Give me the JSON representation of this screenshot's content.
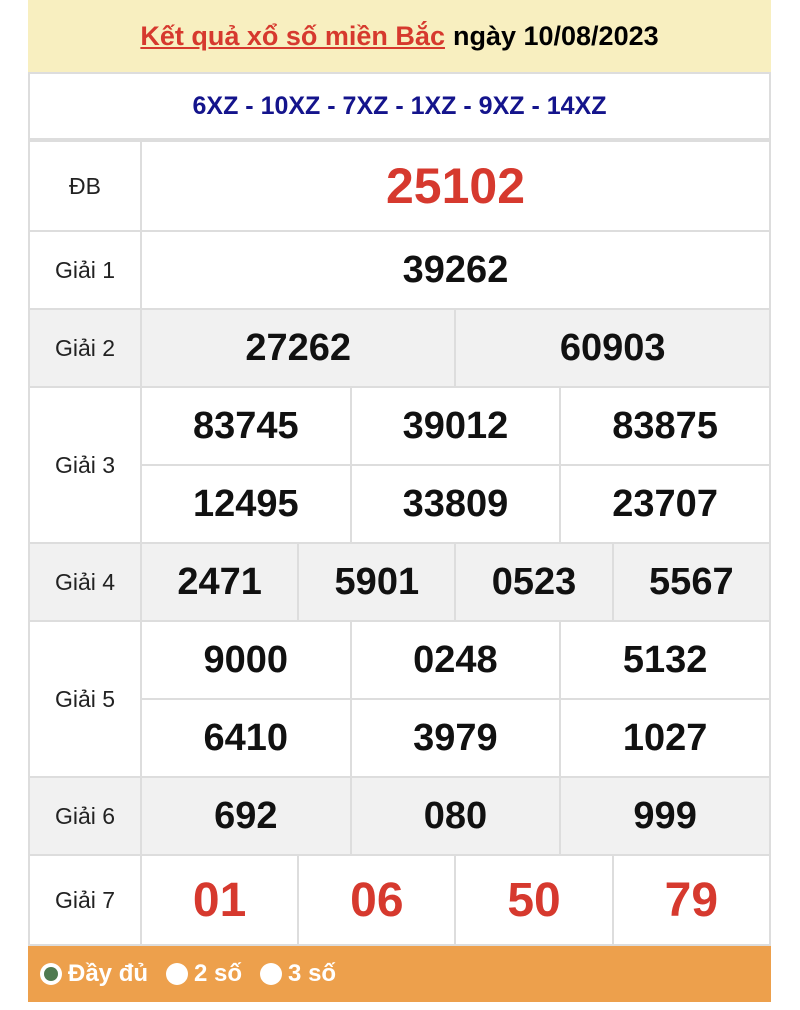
{
  "header": {
    "title_link": "Kết quả xổ số miền Bắc",
    "date_text": "ngày 10/08/2023"
  },
  "codes": "6XZ - 10XZ - 7XZ - 1XZ - 9XZ - 14XZ",
  "prizes": {
    "db": {
      "label": "ĐB",
      "numbers": [
        "25102"
      ]
    },
    "g1": {
      "label": "Giải 1",
      "numbers": [
        "39262"
      ]
    },
    "g2": {
      "label": "Giải 2",
      "numbers": [
        "27262",
        "60903"
      ]
    },
    "g3": {
      "label": "Giải 3",
      "numbers": [
        "83745",
        "39012",
        "83875",
        "12495",
        "33809",
        "23707"
      ]
    },
    "g4": {
      "label": "Giải 4",
      "numbers": [
        "2471",
        "5901",
        "0523",
        "5567"
      ]
    },
    "g5": {
      "label": "Giải 5",
      "numbers": [
        "9000",
        "0248",
        "5132",
        "6410",
        "3979",
        "1027"
      ]
    },
    "g6": {
      "label": "Giải 6",
      "numbers": [
        "692",
        "080",
        "999"
      ]
    },
    "g7": {
      "label": "Giải 7",
      "numbers": [
        "01",
        "06",
        "50",
        "79"
      ]
    }
  },
  "footer": {
    "options": [
      {
        "label": "Đầy đủ",
        "selected": true
      },
      {
        "label": "2 số",
        "selected": false
      },
      {
        "label": "3 số",
        "selected": false
      }
    ]
  },
  "colors": {
    "accent_red": "#d6392e",
    "code_blue": "#14148c",
    "footer_orange": "#eda04c",
    "header_bg": "#f8efc0"
  }
}
